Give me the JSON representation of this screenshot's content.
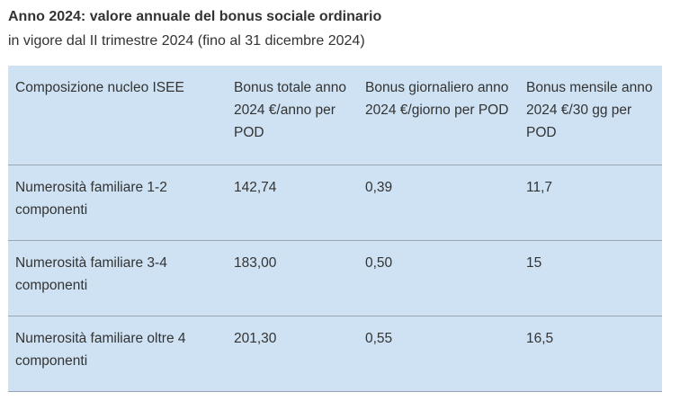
{
  "title": "Anno 2024: valore annuale del bonus sociale ordinario",
  "subtitle": "in vigore dal II trimestre 2024 (fino al 31 dicembre 2024)",
  "table": {
    "headers": [
      "Composizione nucleo ISEE",
      "Bonus totale anno 2024 €/anno per POD",
      "Bonus giornaliero anno 2024 €/giorno per POD",
      "Bonus mensile anno 2024 €/30 gg per POD"
    ],
    "rows": [
      [
        "Numerosità familiare 1-2 componenti",
        "142,74",
        "0,39",
        "11,7"
      ],
      [
        "Numerosità familiare 3-4 componenti",
        "183,00",
        "0,50",
        "15"
      ],
      [
        "Numerosità familiare oltre 4 componenti",
        "201,30",
        "0,55",
        "16,5"
      ]
    ]
  },
  "colors": {
    "table_background": "#cfe2f3",
    "row_divider": "#9aa6b2",
    "text": "#333333"
  }
}
